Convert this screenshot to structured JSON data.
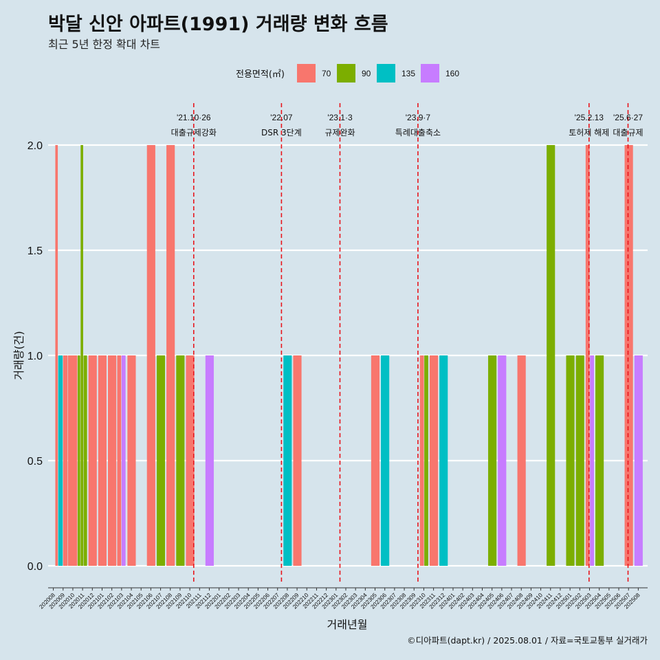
{
  "chart_data": {
    "type": "bar",
    "title": "박달 신안 아파트(1991) 거래량 변화 흐름",
    "subtitle": "최근 5년 한정 확대 차트",
    "xlabel": "거래년월",
    "ylabel": "거래량(건)",
    "ylim": [
      0,
      2
    ],
    "yticks": [
      "0.0",
      "0.5",
      "1.0",
      "1.5",
      "2.0"
    ],
    "grid": true,
    "legend_title": "전용면적(㎡)",
    "legend_position": "top",
    "categories": [
      "202008",
      "202009",
      "202010",
      "202011",
      "202012",
      "202101",
      "202102",
      "202103",
      "202104",
      "202105",
      "202106",
      "202107",
      "202108",
      "202109",
      "202110",
      "202111",
      "202112",
      "202201",
      "202202",
      "202203",
      "202204",
      "202205",
      "202206",
      "202207",
      "202208",
      "202209",
      "202210",
      "202211",
      "202212",
      "202301",
      "202302",
      "202303",
      "202304",
      "202305",
      "202306",
      "202307",
      "202308",
      "202309",
      "202310",
      "202311",
      "202312",
      "202401",
      "202402",
      "202403",
      "202404",
      "202405",
      "202406",
      "202407",
      "202408",
      "202409",
      "202410",
      "202411",
      "202412",
      "202501",
      "202502",
      "202503",
      "202504",
      "202505",
      "202506",
      "202507",
      "202508"
    ],
    "series": [
      {
        "name": "70",
        "color": "#f8766d",
        "points": [
          [
            "202008",
            2
          ],
          [
            "202009",
            1
          ],
          [
            "202011",
            1
          ],
          [
            "202012",
            1
          ],
          [
            "202101",
            1
          ],
          [
            "202102",
            1
          ],
          [
            "202104",
            2
          ],
          [
            "202106",
            2
          ],
          [
            "202108",
            1
          ],
          [
            "202207",
            1
          ],
          [
            "202303",
            1
          ],
          [
            "202308",
            1
          ],
          [
            "202310",
            1
          ],
          [
            "202407",
            1
          ],
          [
            "202502",
            2
          ],
          [
            "202506",
            2
          ]
        ]
      },
      {
        "name": "90",
        "color": "#7cae00",
        "points": [
          [
            "202010",
            1
          ],
          [
            "202010",
            2
          ],
          [
            "202105",
            1
          ],
          [
            "202107",
            1
          ],
          [
            "202308",
            1
          ],
          [
            "202404",
            1
          ],
          [
            "202410",
            2
          ],
          [
            "202412",
            1
          ],
          [
            "202501",
            1
          ],
          [
            "202503",
            1
          ]
        ]
      },
      {
        "name": "135",
        "color": "#00bfc4",
        "points": [
          [
            "202008",
            1
          ],
          [
            "202206",
            1
          ],
          [
            "202304",
            1
          ],
          [
            "202311",
            1
          ]
        ]
      },
      {
        "name": "160",
        "color": "#c77cff",
        "points": [
          [
            "202101",
            1
          ],
          [
            "202110",
            1
          ],
          [
            "202405",
            1
          ],
          [
            "202502",
            1
          ],
          [
            "202507",
            1
          ]
        ]
      }
    ],
    "bars": [
      {
        "x": 0.7,
        "w": 0.3,
        "y": 2,
        "s": "70"
      },
      {
        "x": 1.0,
        "w": 0.5,
        "y": 1,
        "s": "135"
      },
      {
        "x": 1.5,
        "w": 0.5,
        "y": 1,
        "s": "70"
      },
      {
        "x": 2.0,
        "w": 1.0,
        "y": 1,
        "s": "70"
      },
      {
        "x": 3.0,
        "w": 0.3,
        "y": 1,
        "s": "90"
      },
      {
        "x": 3.3,
        "w": 0.3,
        "y": 2,
        "s": "90"
      },
      {
        "x": 3.6,
        "w": 0.4,
        "y": 1,
        "s": "90"
      },
      {
        "x": 4.1,
        "w": 0.9,
        "y": 1,
        "s": "70"
      },
      {
        "x": 5.1,
        "w": 0.9,
        "y": 1,
        "s": "70"
      },
      {
        "x": 6.1,
        "w": 0.9,
        "y": 1,
        "s": "70"
      },
      {
        "x": 7.05,
        "w": 0.45,
        "y": 1,
        "s": "70"
      },
      {
        "x": 7.5,
        "w": 0.45,
        "y": 1,
        "s": "160"
      },
      {
        "x": 8.1,
        "w": 0.9,
        "y": 1,
        "s": "70"
      },
      {
        "x": 10.1,
        "w": 0.9,
        "y": 2,
        "s": "70"
      },
      {
        "x": 11.1,
        "w": 0.9,
        "y": 1,
        "s": "90"
      },
      {
        "x": 12.1,
        "w": 0.9,
        "y": 2,
        "s": "70"
      },
      {
        "x": 13.1,
        "w": 0.9,
        "y": 1,
        "s": "90"
      },
      {
        "x": 14.1,
        "w": 0.9,
        "y": 1,
        "s": "70"
      },
      {
        "x": 16.1,
        "w": 0.9,
        "y": 1,
        "s": "160"
      },
      {
        "x": 24.1,
        "w": 0.9,
        "y": 1,
        "s": "135"
      },
      {
        "x": 25.1,
        "w": 0.9,
        "y": 1,
        "s": "70"
      },
      {
        "x": 33.1,
        "w": 0.9,
        "y": 1,
        "s": "70"
      },
      {
        "x": 34.1,
        "w": 0.9,
        "y": 1,
        "s": "135"
      },
      {
        "x": 38.1,
        "w": 0.45,
        "y": 1,
        "s": "70"
      },
      {
        "x": 38.55,
        "w": 0.45,
        "y": 1,
        "s": "90"
      },
      {
        "x": 39.1,
        "w": 0.9,
        "y": 1,
        "s": "70"
      },
      {
        "x": 40.1,
        "w": 0.9,
        "y": 1,
        "s": "135"
      },
      {
        "x": 45.1,
        "w": 0.9,
        "y": 1,
        "s": "90"
      },
      {
        "x": 46.1,
        "w": 0.9,
        "y": 1,
        "s": "160"
      },
      {
        "x": 48.1,
        "w": 0.9,
        "y": 1,
        "s": "70"
      },
      {
        "x": 51.1,
        "w": 0.9,
        "y": 2,
        "s": "90"
      },
      {
        "x": 53.1,
        "w": 0.9,
        "y": 1,
        "s": "90"
      },
      {
        "x": 54.1,
        "w": 0.9,
        "y": 1,
        "s": "90"
      },
      {
        "x": 55.1,
        "w": 0.45,
        "y": 2,
        "s": "70"
      },
      {
        "x": 55.55,
        "w": 0.45,
        "y": 1,
        "s": "160"
      },
      {
        "x": 56.1,
        "w": 0.9,
        "y": 1,
        "s": "90"
      },
      {
        "x": 59.1,
        "w": 0.9,
        "y": 2,
        "s": "70"
      },
      {
        "x": 60.1,
        "w": 0.9,
        "y": 1,
        "s": "160"
      }
    ],
    "events": [
      {
        "date": "'21.10·26",
        "label": "대출규제강화",
        "pos": 14.9
      },
      {
        "date": "'22.07",
        "label": "DSR 3단계",
        "pos": 23.9
      },
      {
        "date": "'23.1·3",
        "label": "규제완화",
        "pos": 29.9
      },
      {
        "date": "'23.9·7",
        "label": "특례대출축소",
        "pos": 37.9
      },
      {
        "date": "'25.2.13",
        "label": "토허제 해제",
        "pos": 55.45
      },
      {
        "date": "'25.6·27",
        "label": "대출규제",
        "pos": 59.45
      }
    ]
  },
  "caption": "©디아파트(dapt.kr) / 2025.08.01 / 자료=국토교통부 실거래가"
}
